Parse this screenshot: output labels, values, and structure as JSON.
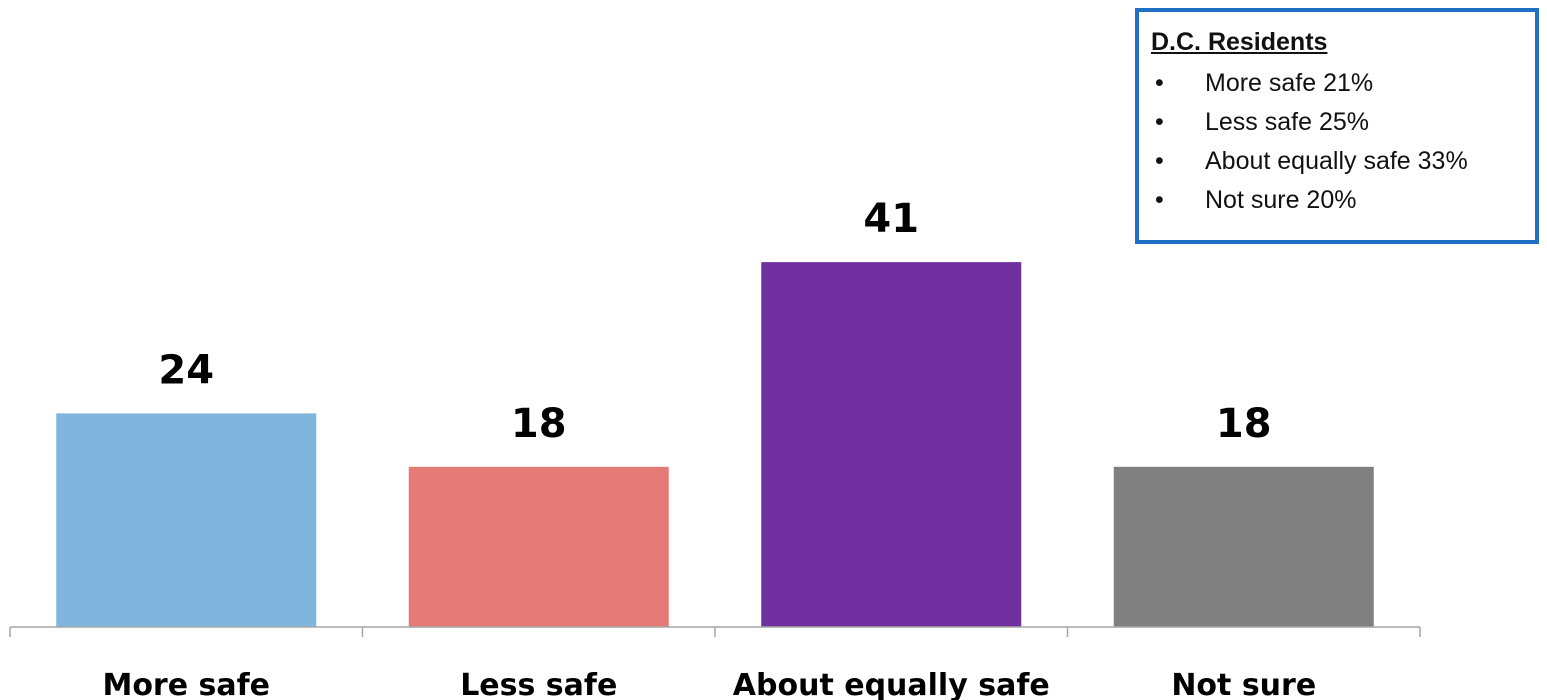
{
  "chart_data": {
    "type": "bar",
    "categories": [
      "More safe",
      "Less safe",
      "About equally safe",
      "Not sure"
    ],
    "values": [
      24,
      18,
      41,
      18
    ],
    "data_labels": [
      "24",
      "18",
      "41",
      "18"
    ],
    "colors": [
      "#7fb5de",
      "#e57b76",
      "#7030a0",
      "#808080"
    ],
    "title": "",
    "xlabel": "",
    "ylabel": "",
    "ylim": [
      0,
      50
    ],
    "grid": false,
    "legend": "none"
  },
  "inset": {
    "title": "D.C. Residents",
    "items": [
      "More safe 21%",
      "Less safe 25%",
      "About equally safe 33%",
      "Not sure 20%"
    ],
    "border_color": "#1f6fc5"
  }
}
